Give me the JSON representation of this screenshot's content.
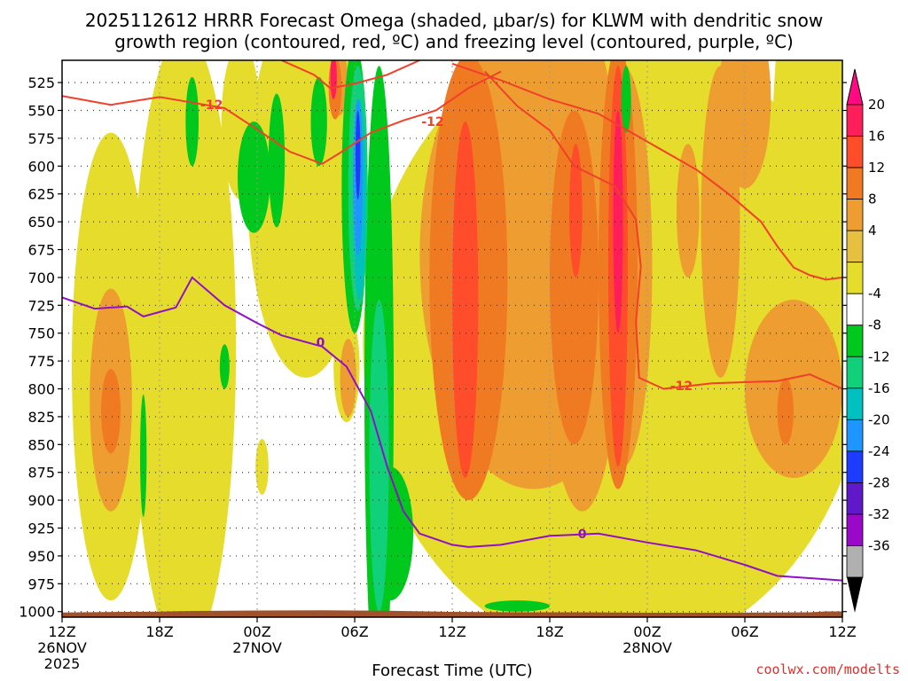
{
  "chart_data": {
    "type": "heatmap",
    "title_line1": "2025112612 HRRR Forecast Omega (shaded, μbar/s) for KLWM with dendritic snow",
    "title_line2": "growth region (contoured, red, ºC) and freezing level (contoured, purple, ºC)",
    "xlabel": "Forecast Time (UTC)",
    "credit": "coolwx.com/modelts",
    "y_ticks": [
      525,
      550,
      575,
      600,
      625,
      650,
      675,
      700,
      725,
      750,
      775,
      800,
      825,
      850,
      875,
      900,
      925,
      950,
      975,
      1000
    ],
    "y_range_hpa": [
      505,
      1005
    ],
    "x_range_hours": [
      0,
      48
    ],
    "x_ticks": [
      {
        "h": 0,
        "line1": "12Z",
        "line2": "26NOV",
        "line3": "2025"
      },
      {
        "h": 6,
        "line1": "18Z"
      },
      {
        "h": 12,
        "line1": "00Z",
        "line2": "27NOV"
      },
      {
        "h": 18,
        "line1": "06Z"
      },
      {
        "h": 24,
        "line1": "12Z"
      },
      {
        "h": 30,
        "line1": "18Z"
      },
      {
        "h": 36,
        "line1": "00Z",
        "line2": "28NOV"
      },
      {
        "h": 42,
        "line1": "06Z"
      },
      {
        "h": 48,
        "line1": "12Z"
      }
    ],
    "colorbar": {
      "labels": [
        "20",
        "16",
        "12",
        "8",
        "4",
        "-4",
        "-8",
        "-12",
        "-16",
        "-20",
        "-24",
        "-28",
        "-32",
        "-36"
      ],
      "colors": [
        "#ff1e5a",
        "#ff4c2a",
        "#f07a22",
        "#ee9e30",
        "#e8c040",
        "#e6dc2c",
        "#ffffff",
        "#00c81c",
        "#10d07a",
        "#00c0c0",
        "#1e96ff",
        "#1e3cff",
        "#6018c8",
        "#9a08c8",
        "#b0b0b0"
      ],
      "top_color": "#ff0a82",
      "bottom_color": "#000000"
    },
    "dgz_contour_label": "-12",
    "freezing_contour_label": "0",
    "dgz_color": "#f0402a",
    "freezing_color": "#9010c8",
    "terrain_color": "#a0522d",
    "dgz_upper": [
      [
        0,
        537
      ],
      [
        3,
        545
      ],
      [
        6,
        538
      ],
      [
        8,
        543
      ],
      [
        10,
        548
      ],
      [
        12,
        567
      ],
      [
        14,
        587
      ],
      [
        16,
        598
      ],
      [
        17,
        589
      ],
      [
        19,
        570
      ],
      [
        21,
        559
      ],
      [
        23,
        550
      ],
      [
        25,
        530
      ],
      [
        27,
        515
      ]
    ],
    "dgz_lower": [
      [
        13.5,
        505
      ],
      [
        15.5,
        518
      ],
      [
        16.5,
        530
      ],
      [
        18,
        526
      ],
      [
        20,
        518
      ],
      [
        22,
        505
      ]
    ],
    "dgz_right": [
      [
        24,
        508
      ],
      [
        27,
        523
      ],
      [
        30,
        540
      ],
      [
        33,
        553
      ],
      [
        36,
        578
      ],
      [
        39,
        603
      ],
      [
        41,
        625
      ],
      [
        43,
        650
      ],
      [
        44,
        672
      ],
      [
        45,
        691
      ],
      [
        46,
        698
      ],
      [
        47,
        702
      ],
      [
        48,
        700
      ]
    ],
    "dgz_mid": [
      [
        26,
        515
      ],
      [
        28,
        546
      ],
      [
        30,
        568
      ],
      [
        31.5,
        600
      ],
      [
        34,
        618
      ],
      [
        35.3,
        648
      ],
      [
        35.6,
        690
      ],
      [
        35.3,
        740
      ],
      [
        35.5,
        790
      ],
      [
        37,
        800
      ],
      [
        40,
        795
      ],
      [
        44,
        793
      ],
      [
        46,
        787
      ],
      [
        48,
        800
      ]
    ],
    "freezing": [
      [
        0,
        718
      ],
      [
        2,
        728
      ],
      [
        4,
        726
      ],
      [
        5,
        735
      ],
      [
        7,
        727
      ],
      [
        8,
        700
      ],
      [
        10,
        725
      ],
      [
        12,
        741
      ],
      [
        13.5,
        752
      ],
      [
        16,
        762
      ],
      [
        17.5,
        780
      ],
      [
        19,
        820
      ],
      [
        20,
        870
      ],
      [
        21,
        910
      ],
      [
        22,
        930
      ],
      [
        24,
        940
      ],
      [
        25,
        942
      ],
      [
        27,
        940
      ],
      [
        30,
        932
      ],
      [
        33,
        930
      ],
      [
        36,
        938
      ],
      [
        39,
        945
      ],
      [
        42,
        958
      ],
      [
        44,
        968
      ],
      [
        46,
        970
      ],
      [
        48,
        972
      ]
    ],
    "omega_patches": [
      {
        "level": 4,
        "h": 3,
        "p": 780,
        "rh": 2.4,
        "rp": 210
      },
      {
        "level": 8,
        "h": 3,
        "p": 810,
        "rh": 1.3,
        "rp": 100
      },
      {
        "level": 12,
        "h": 3,
        "p": 820,
        "rh": 0.6,
        "rp": 38
      },
      {
        "level": 4,
        "h": 7.5,
        "p": 760,
        "rh": 3.2,
        "rp": 280
      },
      {
        "level": 4,
        "h": 11,
        "p": 560,
        "rh": 1.2,
        "rp": 70
      },
      {
        "level": 4,
        "h": 12.3,
        "p": 870,
        "rh": 0.4,
        "rp": 25
      },
      {
        "level": 4,
        "h": 15,
        "p": 620,
        "rh": 3.6,
        "rp": 170
      },
      {
        "level": 4,
        "h": 17.5,
        "p": 780,
        "rh": 0.8,
        "rp": 50
      },
      {
        "level": 8,
        "h": 17.6,
        "p": 790,
        "rh": 0.5,
        "rp": 35
      },
      {
        "level": 4,
        "h": 34,
        "p": 760,
        "rh": 15.5,
        "rp": 280
      },
      {
        "level": 8,
        "h": 29,
        "p": 680,
        "rh": 7,
        "rp": 210
      },
      {
        "level": 12,
        "h": 25,
        "p": 700,
        "rh": 2.4,
        "rp": 200
      },
      {
        "level": 16,
        "h": 24.8,
        "p": 720,
        "rh": 0.8,
        "rp": 160
      },
      {
        "level": 4,
        "h": 46,
        "p": 640,
        "rh": 2.4,
        "rp": 280
      },
      {
        "level": 8,
        "h": 42,
        "p": 540,
        "rh": 1.6,
        "rp": 80
      },
      {
        "level": 8,
        "h": 45,
        "p": 800,
        "rh": 3,
        "rp": 80
      },
      {
        "level": 12,
        "h": 44.5,
        "p": 820,
        "rh": 0.5,
        "rp": 30
      },
      {
        "level": 8,
        "h": 32,
        "p": 690,
        "rh": 2.5,
        "rp": 220
      },
      {
        "level": 12,
        "h": 31.5,
        "p": 700,
        "rh": 1.5,
        "rp": 150
      },
      {
        "level": 16,
        "h": 31.6,
        "p": 640,
        "rh": 0.4,
        "rp": 60
      },
      {
        "level": 8,
        "h": 34.5,
        "p": 690,
        "rh": 1.8,
        "rp": 180
      },
      {
        "level": 12,
        "h": 34.2,
        "p": 690,
        "rh": 1.2,
        "rp": 200
      },
      {
        "level": 16,
        "h": 34.2,
        "p": 690,
        "rh": 0.6,
        "rp": 180
      },
      {
        "level": 20,
        "h": 34.2,
        "p": 650,
        "rh": 0.3,
        "rp": 100
      },
      {
        "level": 8,
        "h": 26.5,
        "p": 720,
        "rh": 1.4,
        "rp": 150
      },
      {
        "level": 8,
        "h": 38.5,
        "p": 640,
        "rh": 0.7,
        "rp": 60
      },
      {
        "level": 8,
        "h": 40.5,
        "p": 650,
        "rh": 1.2,
        "rp": 140
      },
      {
        "level": 8,
        "h": 17,
        "p": 525,
        "rh": 0.6,
        "rp": 30
      },
      {
        "level": 12,
        "h": 16.8,
        "p": 530,
        "rh": 0.4,
        "rp": 28
      },
      {
        "level": 20,
        "h": 16.7,
        "p": 520,
        "rh": 0.2,
        "rp": 20
      },
      {
        "level": -4,
        "h": 8,
        "p": 560,
        "rh": 0.4,
        "rp": 40
      },
      {
        "level": -4,
        "h": 11.8,
        "p": 610,
        "rh": 1,
        "rp": 50
      },
      {
        "level": -4,
        "h": 13.2,
        "p": 595,
        "rh": 0.5,
        "rp": 60
      },
      {
        "level": -4,
        "h": 15.8,
        "p": 560,
        "rh": 0.5,
        "rp": 40
      },
      {
        "level": -4,
        "h": 34.7,
        "p": 540,
        "rh": 0.3,
        "rp": 30
      },
      {
        "level": -4,
        "h": 19.5,
        "p": 800,
        "rh": 0.9,
        "rp": 290
      },
      {
        "level": -8,
        "h": 19.5,
        "p": 860,
        "rh": 0.6,
        "rp": 140
      },
      {
        "level": -4,
        "h": 20.2,
        "p": 930,
        "rh": 1.4,
        "rp": 60
      },
      {
        "level": -4,
        "h": 5,
        "p": 860,
        "rh": 0.2,
        "rp": 55
      },
      {
        "level": -4,
        "h": 10,
        "p": 780,
        "rh": 0.3,
        "rp": 20
      },
      {
        "level": -4,
        "h": 28,
        "p": 995,
        "rh": 2,
        "rp": 5
      },
      {
        "level": -4,
        "h": 18,
        "p": 620,
        "rh": 0.8,
        "rp": 130
      },
      {
        "level": -8,
        "h": 18.2,
        "p": 620,
        "rh": 0.6,
        "rp": 110
      },
      {
        "level": -12,
        "h": 18.3,
        "p": 630,
        "rh": 0.4,
        "rp": 90
      },
      {
        "level": -16,
        "h": 18.2,
        "p": 610,
        "rh": 0.3,
        "rp": 70
      },
      {
        "level": -20,
        "h": 18.2,
        "p": 590,
        "rh": 0.15,
        "rp": 40
      }
    ]
  }
}
